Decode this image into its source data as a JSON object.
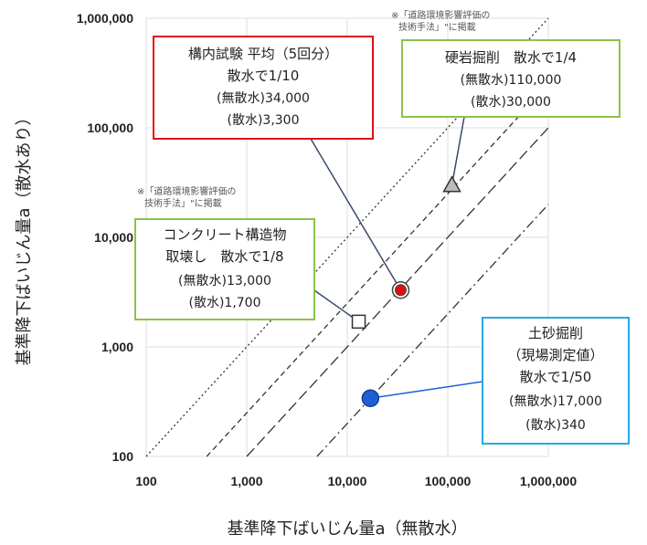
{
  "chart_data": {
    "type": "scatter",
    "x_axis": {
      "label": "基準降下ばいじん量a（無散水）",
      "scale": "log",
      "range": [
        100,
        1000000
      ],
      "ticks": [
        "100",
        "1,000",
        "10,000",
        "100,000",
        "1,000,000"
      ]
    },
    "y_axis": {
      "label": "基準降下ばいじん量a（散水あり）",
      "scale": "log",
      "range": [
        100,
        1000000
      ],
      "ticks": [
        "100",
        "1,000",
        "10,000",
        "100,000",
        "1,000,000"
      ]
    },
    "grid": true,
    "points": [
      {
        "id": "soil",
        "x": 17000,
        "y": 340,
        "marker": "circle",
        "color": "#1f5fd6"
      },
      {
        "id": "concrete",
        "x": 13000,
        "y": 1700,
        "marker": "square",
        "color": "#ffffff"
      },
      {
        "id": "yard",
        "x": 34000,
        "y": 3300,
        "marker": "circle",
        "color": "#e01010"
      },
      {
        "id": "rock",
        "x": 110000,
        "y": 30000,
        "marker": "triangle",
        "color": "#bbbbbb"
      }
    ],
    "ratio_lines": [
      {
        "ratio": 1,
        "style": "dotted"
      },
      {
        "ratio": 4,
        "style": "dashed"
      },
      {
        "ratio": 10,
        "style": "long-dash"
      },
      {
        "ratio": 50,
        "style": "dash-dot"
      }
    ],
    "annotations": [
      {
        "id": "yard",
        "border_color": "#e01010",
        "lines": [
          "構内試験 平均（5回分）",
          "散水で1/10",
          "(無散水)34,000",
          "(散水)3,300"
        ]
      },
      {
        "id": "rock",
        "border_color": "#8bc34a",
        "lines": [
          "硬岩掘削　散水で1/4",
          "(無散水)110,000",
          "(散水)30,000"
        ]
      },
      {
        "id": "concrete",
        "border_color": "#8bc34a",
        "lines": [
          "コンクリート構造物",
          "取壊し　散水で1/8",
          "(無散水)13,000",
          "(散水)1,700"
        ]
      },
      {
        "id": "soil",
        "border_color": "#29a8e0",
        "lines": [
          "土砂掘削",
          "（現場測定値）",
          "散水で1/50",
          "(無散水)17,000",
          "(散水)340"
        ]
      }
    ],
    "notes": [
      [
        "※「道路環境影響評価の",
        "技術手法」\"に掲載"
      ],
      [
        "※「道路環境影響評価の",
        "技術手法」\"に掲載"
      ]
    ]
  }
}
